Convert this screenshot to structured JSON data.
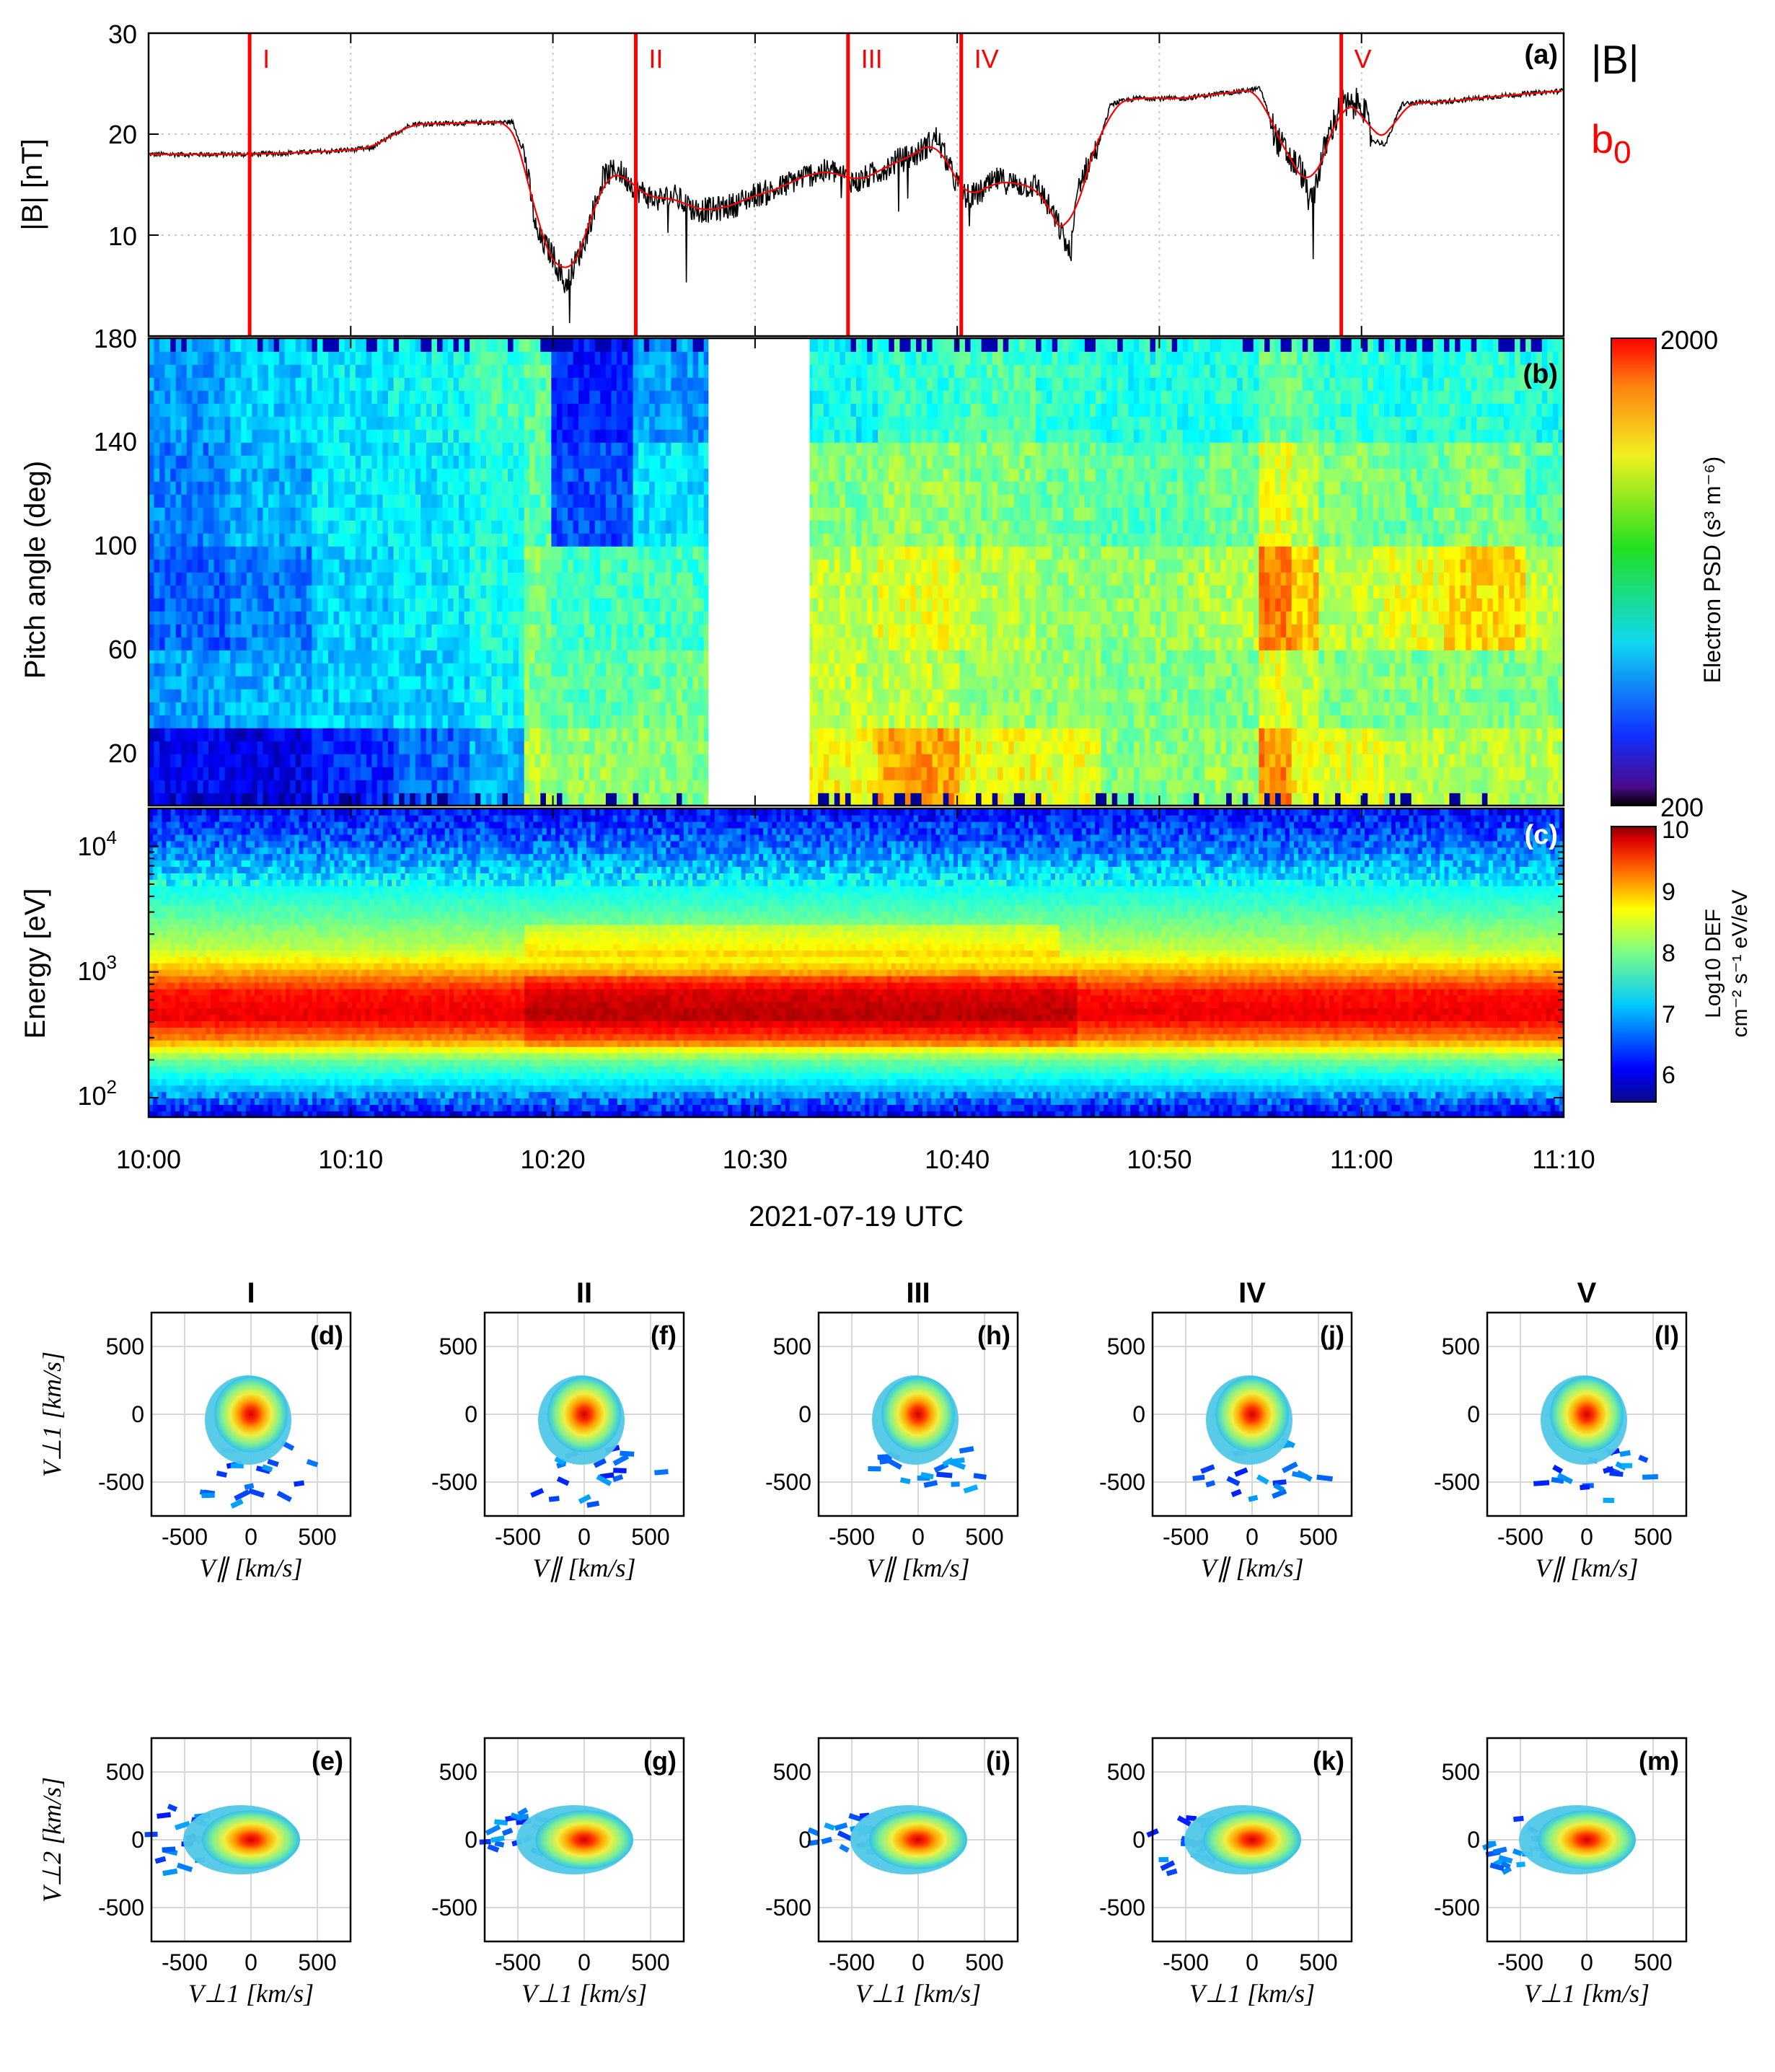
{
  "colors": {
    "field_line": "#000000",
    "b0_line": "#ff0000",
    "event_line": "#ff0000",
    "grid": "#c8c8c8"
  },
  "time_axis": {
    "tick_labels": [
      "10:00",
      "10:10",
      "10:20",
      "10:30",
      "10:40",
      "10:50",
      "11:00",
      "11:10"
    ],
    "xlabel": "2021-07-19 UTC"
  },
  "panel_a": {
    "tag": "(a)",
    "ylabel": "|B| [nT]",
    "yticks": [
      "10",
      "20",
      "30"
    ],
    "legend": [
      {
        "label": "|B|",
        "color": "#000000"
      },
      {
        "label": "b",
        "sub": "0",
        "color": "#ff0000"
      }
    ]
  },
  "panel_b": {
    "tag": "(b)",
    "ylabel": "Pitch angle (deg)",
    "yticks": [
      "20",
      "60",
      "100",
      "140",
      "180"
    ],
    "colorbar_label": "Electron PSD (s³ m⁻⁶)",
    "colorbar_ticks": [
      "200",
      "2000"
    ]
  },
  "panel_c": {
    "tag": "(c)",
    "ylabel": "Energy [eV]",
    "yticks": [
      {
        "base": "10",
        "exp": "2"
      },
      {
        "base": "10",
        "exp": "3"
      },
      {
        "base": "10",
        "exp": "4"
      }
    ],
    "colorbar_label_line1": "Log10 DEF",
    "colorbar_label_line2": "cm⁻² s⁻¹ eV/eV",
    "colorbar_ticks": [
      "6",
      "7",
      "8",
      "9",
      "10"
    ]
  },
  "events": [
    {
      "label": "I",
      "time_min": 5.0
    },
    {
      "label": "II",
      "time_min": 24.1
    },
    {
      "label": "III",
      "time_min": 34.6
    },
    {
      "label": "IV",
      "time_min": 40.2
    },
    {
      "label": "V",
      "time_min": 59.0
    }
  ],
  "vdf_panels": {
    "column_titles": [
      "I",
      "II",
      "III",
      "IV",
      "V"
    ],
    "ticks": [
      "-500",
      "0",
      "500"
    ],
    "top_row": {
      "tags": [
        "(d)",
        "(f)",
        "(h)",
        "(j)",
        "(l)"
      ],
      "xlabel": "V∥ [km/s]",
      "ylabel": "V⊥1 [km/s]"
    },
    "bottom_row": {
      "tags": [
        "(e)",
        "(g)",
        "(i)",
        "(k)",
        "(m)"
      ],
      "xlabel": "V⊥1 [km/s]",
      "ylabel": "V⊥2 [km/s]"
    }
  },
  "chart_data": [
    {
      "type": "line",
      "id": "a",
      "ylabel": "|B| [nT]",
      "xlim": [
        0,
        70
      ],
      "ylim": [
        0,
        30
      ],
      "grid": true,
      "legend_placement": "right-outside",
      "series": [
        {
          "name": "|B|",
          "x": [
            0,
            5,
            9,
            11,
            13,
            18,
            18.6,
            19.2,
            20,
            20.6,
            21.5,
            22.5,
            23.2,
            24.2,
            25,
            26,
            27,
            28,
            29,
            30,
            31,
            32,
            33,
            34,
            35,
            36,
            37,
            38,
            39,
            39.8,
            40.4,
            41,
            42,
            43,
            44,
            45,
            45.6,
            46,
            47,
            47.6,
            49,
            51,
            53,
            55,
            55.8,
            56.5,
            57,
            57.5,
            57.9,
            58.4,
            59,
            59.5,
            60,
            60.5,
            61.2,
            62,
            64,
            67,
            70
          ],
          "y": [
            18,
            18,
            18.3,
            18.6,
            21,
            21.2,
            18,
            10,
            8,
            5,
            9,
            15.8,
            16.5,
            14.5,
            13.5,
            13.8,
            12.5,
            12.5,
            13,
            14,
            14.4,
            15.5,
            16.2,
            16.3,
            15.2,
            16.2,
            17.3,
            18,
            19.7,
            15.8,
            13.8,
            14,
            15.5,
            15,
            14.8,
            11,
            8,
            15,
            19,
            23,
            23.6,
            23.5,
            24,
            24.5,
            19.5,
            17.5,
            16.5,
            13,
            16.5,
            20,
            23,
            22.6,
            23.4,
            19.4,
            19,
            23,
            23.2,
            23.8,
            24.3
          ]
        },
        {
          "name": "b0",
          "x": [
            0,
            5,
            9,
            11,
            13,
            18,
            18.6,
            19.2,
            20,
            20.6,
            21.5,
            22.5,
            23.2,
            24.2,
            25,
            26,
            27,
            28,
            29,
            30,
            31,
            32,
            33,
            34,
            35,
            36,
            37,
            38,
            39,
            39.8,
            40.4,
            41,
            42,
            43,
            44,
            45,
            45.6,
            46,
            47,
            47.6,
            49,
            51,
            53,
            55,
            55.8,
            56.5,
            57,
            57.5,
            57.9,
            58.4,
            59,
            59.5,
            60,
            60.5,
            61.2,
            62,
            64,
            67,
            70
          ],
          "y": [
            18,
            18,
            18.3,
            18.6,
            21,
            21.2,
            18,
            10,
            8,
            5,
            9,
            15.8,
            16.5,
            14.5,
            13.5,
            13.8,
            12.5,
            12.5,
            13,
            14,
            14.4,
            15.5,
            16.2,
            16.3,
            15.2,
            16.2,
            17.3,
            18,
            19.7,
            15.8,
            13.8,
            14,
            15.5,
            15,
            14.8,
            11,
            8,
            15,
            19,
            23,
            23.6,
            23.5,
            24,
            24.5,
            19.5,
            17.5,
            16.5,
            13,
            16.5,
            20,
            23,
            22.6,
            23.4,
            19.4,
            19,
            23,
            23.2,
            23.8,
            24.3
          ]
        }
      ]
    },
    {
      "type": "heatmap",
      "id": "b",
      "ylabel": "Pitch angle (deg)",
      "xlim": [
        0,
        70
      ],
      "ylim": [
        0,
        180
      ],
      "gap_x": [
        27.7,
        32.7
      ],
      "colorbar": {
        "label": "Electron PSD (s^3 m^-6)",
        "min": 200,
        "max": 2000
      },
      "segments_x": [
        0,
        4,
        8,
        12,
        16,
        18.5,
        20,
        24,
        27.7,
        32.7,
        36,
        40,
        44,
        47,
        52,
        55,
        56.5,
        58,
        61,
        64,
        68,
        70
      ],
      "pitch_bins_y": [
        0,
        30,
        60,
        100,
        140,
        180
      ],
      "levels": [
        [
          0.12,
          0.1,
          0.16,
          0.22,
          0.3,
          0.55,
          0.52,
          0.5,
          0.5,
          0.62,
          0.72,
          0.62,
          0.6,
          0.5,
          0.52,
          0.74,
          0.62,
          0.6,
          0.55,
          0.55,
          0.55
        ],
        [
          0.28,
          0.3,
          0.32,
          0.33,
          0.38,
          0.5,
          0.46,
          0.48,
          0.48,
          0.56,
          0.56,
          0.52,
          0.52,
          0.5,
          0.5,
          0.6,
          0.56,
          0.5,
          0.5,
          0.5,
          0.5
        ],
        [
          0.22,
          0.25,
          0.33,
          0.36,
          0.4,
          0.5,
          0.44,
          0.44,
          0.44,
          0.56,
          0.6,
          0.55,
          0.52,
          0.52,
          0.55,
          0.75,
          0.68,
          0.56,
          0.6,
          0.66,
          0.56
        ],
        [
          0.25,
          0.3,
          0.36,
          0.36,
          0.4,
          0.46,
          0.2,
          0.35,
          0.35,
          0.5,
          0.52,
          0.5,
          0.48,
          0.46,
          0.48,
          0.6,
          0.56,
          0.5,
          0.48,
          0.5,
          0.46
        ],
        [
          0.28,
          0.33,
          0.36,
          0.38,
          0.44,
          0.46,
          0.15,
          0.28,
          0.3,
          0.38,
          0.42,
          0.45,
          0.42,
          0.4,
          0.4,
          0.48,
          0.46,
          0.42,
          0.4,
          0.42,
          0.4
        ]
      ]
    },
    {
      "type": "heatmap",
      "id": "c",
      "ylabel": "Energy [eV]",
      "xlim": [
        0,
        70
      ],
      "ylim": [
        70,
        20000
      ],
      "yscale": "log",
      "colorbar": {
        "label": "Log10 DEF",
        "units": "cm^-2 s^-1 eV/eV",
        "min": 5.5,
        "max": 10
      },
      "energy_peak_eV": 450,
      "profile_energy_eV": [
        80,
        120,
        200,
        300,
        450,
        700,
        1000,
        1500,
        2500,
        5000,
        10000,
        20000
      ],
      "profile_log10_def": [
        6.0,
        6.8,
        7.6,
        8.9,
        9.6,
        9.4,
        8.7,
        8.0,
        7.6,
        7.1,
        6.4,
        5.9
      ]
    },
    {
      "type": "heatmap",
      "id": "vdf",
      "panels": [
        "d",
        "e",
        "f",
        "g",
        "h",
        "i",
        "j",
        "k",
        "l",
        "m"
      ],
      "xlim": [
        -750,
        750
      ],
      "ylim": [
        -750,
        750
      ],
      "grid": true,
      "peak_velocity_km_s": [
        0,
        0
      ]
    }
  ]
}
